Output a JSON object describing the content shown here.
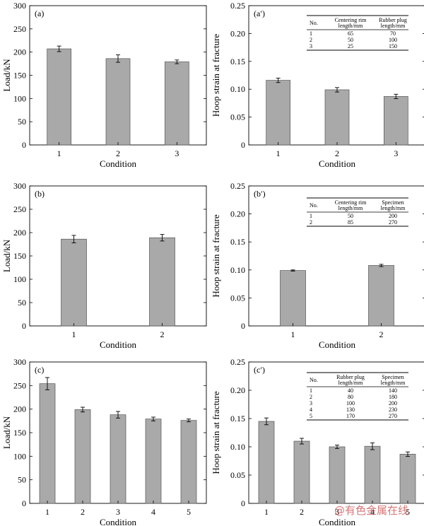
{
  "watermark": "@有色金属在线",
  "chart_data": [
    {
      "id": "a",
      "panel_label": "(a)",
      "type": "bar",
      "categories": [
        "1",
        "2",
        "3"
      ],
      "series": [
        {
          "values": [
            207,
            186,
            179
          ],
          "errors": [
            6,
            8,
            4
          ]
        }
      ],
      "ylabel": "Load/kN",
      "xlabel": "Condition",
      "ylim": [
        0,
        300
      ],
      "yticks": [
        "0",
        "50",
        "100",
        "150",
        "200",
        "250",
        "300"
      ],
      "bar_color": "#a9a9a9"
    },
    {
      "id": "a2",
      "panel_label": "(a′)",
      "type": "bar",
      "categories": [
        "1",
        "2",
        "3"
      ],
      "series": [
        {
          "values": [
            0.116,
            0.099,
            0.087
          ],
          "errors": [
            0.004,
            0.004,
            0.004
          ]
        }
      ],
      "ylabel": "Hoop strain at fracture",
      "xlabel": "Condition",
      "ylim": [
        0,
        0.25
      ],
      "yticks": [
        "0",
        "0.05",
        "0.10",
        "0.15",
        "0.20",
        "0.25"
      ],
      "bar_color": "#a9a9a9",
      "table": {
        "headers": [
          [
            "No."
          ],
          [
            "Centering rim",
            "length/mm"
          ],
          [
            "Rubber plug",
            "length/mm"
          ]
        ],
        "rows": [
          [
            "1",
            "65",
            "70"
          ],
          [
            "2",
            "50",
            "100"
          ],
          [
            "3",
            "25",
            "150"
          ]
        ]
      }
    },
    {
      "id": "b",
      "panel_label": "(b)",
      "type": "bar",
      "categories": [
        "1",
        "2"
      ],
      "series": [
        {
          "values": [
            186,
            189
          ],
          "errors": [
            8,
            7
          ]
        }
      ],
      "ylabel": "Load/kN",
      "xlabel": "Condition",
      "ylim": [
        0,
        300
      ],
      "yticks": [
        "0",
        "50",
        "100",
        "150",
        "200",
        "250",
        "300"
      ],
      "bar_color": "#a9a9a9"
    },
    {
      "id": "b2",
      "panel_label": "(b′)",
      "type": "bar",
      "categories": [
        "1",
        "2"
      ],
      "series": [
        {
          "values": [
            0.099,
            0.108
          ],
          "errors": [
            0.001,
            0.002
          ]
        }
      ],
      "ylabel": "Hoop strain at fracture",
      "xlabel": "Condition",
      "ylim": [
        0,
        0.25
      ],
      "yticks": [
        "0",
        "0.05",
        "0.10",
        "0.15",
        "0.20",
        "0.25"
      ],
      "bar_color": "#a9a9a9",
      "table": {
        "headers": [
          [
            "No."
          ],
          [
            "Centering rim",
            "length/mm"
          ],
          [
            "Specimen",
            "length/mm"
          ]
        ],
        "rows": [
          [
            "1",
            "50",
            "200"
          ],
          [
            "2",
            "85",
            "270"
          ]
        ]
      }
    },
    {
      "id": "c",
      "panel_label": "(c)",
      "type": "bar",
      "categories": [
        "1",
        "2",
        "3",
        "4",
        "5"
      ],
      "series": [
        {
          "values": [
            254,
            199,
            188,
            179,
            176
          ],
          "errors": [
            13,
            5,
            7,
            4,
            3
          ]
        }
      ],
      "ylabel": "Load/kN",
      "xlabel": "Condition",
      "ylim": [
        0,
        300
      ],
      "yticks": [
        "0",
        "50",
        "100",
        "150",
        "200",
        "250",
        "300"
      ],
      "bar_color": "#a9a9a9"
    },
    {
      "id": "c2",
      "panel_label": "(c′)",
      "type": "bar",
      "categories": [
        "1",
        "2",
        "3",
        "4",
        "5"
      ],
      "series": [
        {
          "values": [
            0.145,
            0.11,
            0.1,
            0.101,
            0.087
          ],
          "errors": [
            0.006,
            0.005,
            0.003,
            0.006,
            0.004
          ]
        }
      ],
      "ylabel": "Hoop strain at fracture",
      "xlabel": "Condition",
      "ylim": [
        0,
        0.25
      ],
      "yticks": [
        "0",
        "0.05",
        "0.10",
        "0.15",
        "0.20",
        "0.25"
      ],
      "bar_color": "#a9a9a9",
      "table": {
        "headers": [
          [
            "No."
          ],
          [
            "Rubber plug",
            "length/mm"
          ],
          [
            "Specimen",
            "length/mm"
          ]
        ],
        "rows": [
          [
            "1",
            "40",
            "140"
          ],
          [
            "2",
            "80",
            "180"
          ],
          [
            "3",
            "100",
            "200"
          ],
          [
            "4",
            "130",
            "230"
          ],
          [
            "5",
            "170",
            "270"
          ]
        ]
      }
    }
  ]
}
